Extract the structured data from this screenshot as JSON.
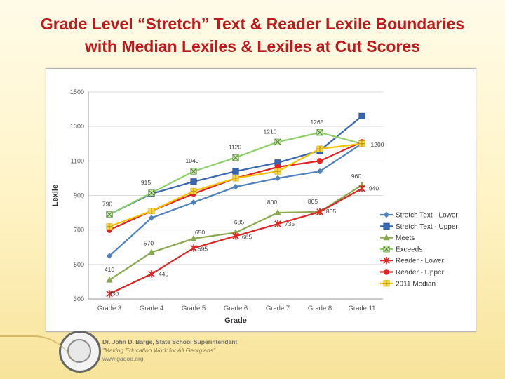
{
  "slide": {
    "title_line1": "Grade Level “Stretch” Text & Reader Lexile Boundaries",
    "title_line2": "with Median Lexiles & Lexiles at Cut Scores"
  },
  "footer": {
    "line1": "Dr. John D. Barge, State School Superintendent",
    "line2": "“Making Education Work for All Georgians”",
    "line3": "www.gadoe.org"
  },
  "chart_data": {
    "type": "line",
    "categories": [
      "Grade 3",
      "Grade 4",
      "Grade 5",
      "Grade 6",
      "Grade 7",
      "Grade 8",
      "Grade 11"
    ],
    "xlabel": "Grade",
    "ylabel": "Lexile",
    "ylim": [
      300,
      1500
    ],
    "yticks": [
      300,
      500,
      700,
      900,
      1100,
      1300,
      1500
    ],
    "grid": true,
    "legend_position": "right",
    "series": [
      {
        "name": "Stretch Text - Lower",
        "color": "#4f81bd",
        "marker": "diamond",
        "values": [
          550,
          770,
          860,
          950,
          1000,
          1040,
          1200
        ]
      },
      {
        "name": "Stretch Text - Upper",
        "color": "#3a66b0",
        "marker": "square",
        "values": [
          790,
          910,
          980,
          1040,
          1090,
          1160,
          1360
        ]
      },
      {
        "name": "Meets",
        "color": "#8aa84f",
        "marker": "triangle",
        "values": [
          410,
          570,
          650,
          685,
          800,
          805,
          960
        ]
      },
      {
        "name": "Exceeds",
        "color": "#8fd06a",
        "marker": "x-square",
        "values": [
          790,
          915,
          1040,
          1120,
          1210,
          1265,
          1200
        ]
      },
      {
        "name": "Reader - Lower",
        "color": "#e02424",
        "marker": "star",
        "values": [
          330,
          445,
          595,
          665,
          735,
          805,
          940
        ]
      },
      {
        "name": "Reader - Upper",
        "color": "#e02424",
        "marker": "circle",
        "values": [
          700,
          810,
          910,
          1000,
          1065,
          1100,
          1210
        ]
      },
      {
        "name": "2011 Median",
        "color": "#f2c200",
        "marker": "plus",
        "values": [
          720,
          810,
          925,
          1000,
          1040,
          1170,
          1200
        ]
      }
    ],
    "data_labels": [
      {
        "series": "Exceeds",
        "values": [
          "790",
          "915",
          "1040",
          "1120",
          "1210",
          "1265",
          "1200"
        ]
      },
      {
        "series": "Meets",
        "values": [
          "410",
          "570",
          "650",
          "685",
          "800",
          "805",
          "960"
        ]
      },
      {
        "series": "Reader - Lower",
        "values": [
          "330",
          "445",
          "595",
          "665",
          "735",
          "805",
          "940"
        ]
      }
    ]
  }
}
